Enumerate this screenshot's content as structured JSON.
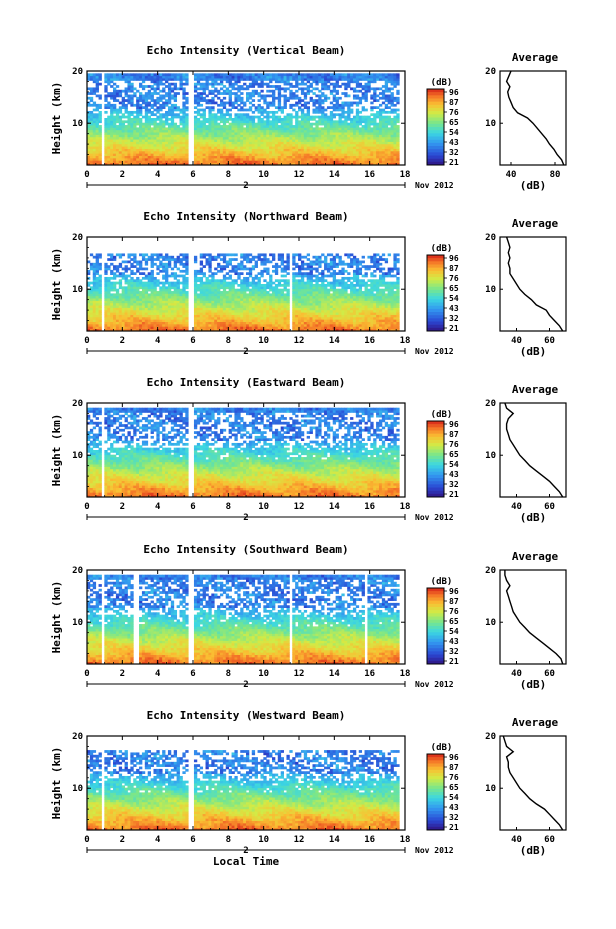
{
  "chart_data": [
    {
      "type": "heatmap",
      "title": "Echo Intensity (Vertical Beam)",
      "ylabel": "Height (km)",
      "x_ticks": [
        "0",
        "2",
        "4",
        "6",
        "8",
        "10",
        "12",
        "14",
        "16",
        "18"
      ],
      "xlim": [
        0,
        18
      ],
      "y_ticks": [
        "20",
        "10"
      ],
      "ylim": [
        2,
        20
      ],
      "date_marker": "2",
      "date_label": "Nov 2012",
      "colorbar": {
        "label": "(dB)",
        "ticks": [
          "96",
          "87",
          "76",
          "65",
          "54",
          "43",
          "32",
          "21"
        ]
      },
      "data_gaps": [
        [
          0.8,
          1.0
        ],
        [
          5.8,
          6.0
        ]
      ],
      "detection_top_km": 19.5,
      "average_profile": {
        "title": "Average",
        "xlabel": "(dB)",
        "x_ticks": [
          "40",
          "80"
        ],
        "xlim": [
          30,
          90
        ],
        "y_ticks": [
          "20",
          "10"
        ],
        "height_km": [
          2,
          3,
          4,
          5,
          6,
          7,
          8,
          9,
          10,
          11,
          12,
          13,
          14,
          15,
          16,
          17,
          18,
          19,
          20
        ],
        "value_db": [
          88,
          86,
          82,
          79,
          75,
          72,
          68,
          64,
          60,
          55,
          46,
          42,
          40,
          38,
          37,
          39,
          36,
          38,
          40
        ]
      }
    },
    {
      "type": "heatmap",
      "title": "Echo Intensity (Northward Beam)",
      "ylabel": "Height (km)",
      "x_ticks": [
        "0",
        "2",
        "4",
        "6",
        "8",
        "10",
        "12",
        "14",
        "16",
        "18"
      ],
      "xlim": [
        0,
        18
      ],
      "y_ticks": [
        "20",
        "10"
      ],
      "ylim": [
        2,
        20
      ],
      "date_marker": "2",
      "date_label": "Nov 2012",
      "colorbar": {
        "label": "(dB)",
        "ticks": [
          "96",
          "87",
          "76",
          "65",
          "54",
          "43",
          "32",
          "21"
        ]
      },
      "data_gaps": [
        [
          0.8,
          1.0
        ],
        [
          5.8,
          6.0
        ],
        [
          11.4,
          11.7
        ]
      ],
      "detection_top_km": 17.0,
      "average_profile": {
        "title": "Average",
        "xlabel": "(dB)",
        "x_ticks": [
          "40",
          "60"
        ],
        "xlim": [
          30,
          70
        ],
        "y_ticks": [
          "20",
          "10"
        ],
        "height_km": [
          2,
          3,
          4,
          5,
          6,
          7,
          8,
          9,
          10,
          11,
          12,
          13,
          14,
          15,
          16,
          17,
          18,
          19,
          20
        ],
        "value_db": [
          68,
          66,
          63,
          60,
          58,
          52,
          49,
          45,
          42,
          40,
          38,
          36,
          36,
          35,
          36,
          35,
          36,
          35,
          34
        ]
      }
    },
    {
      "type": "heatmap",
      "title": "Echo Intensity (Eastward Beam)",
      "ylabel": "Height (km)",
      "x_ticks": [
        "0",
        "2",
        "4",
        "6",
        "8",
        "10",
        "12",
        "14",
        "16",
        "18"
      ],
      "xlim": [
        0,
        18
      ],
      "y_ticks": [
        "20",
        "10"
      ],
      "ylim": [
        2,
        20
      ],
      "date_marker": "2",
      "date_label": "Nov 2012",
      "colorbar": {
        "label": "(dB)",
        "ticks": [
          "96",
          "87",
          "76",
          "65",
          "54",
          "43",
          "32",
          "21"
        ]
      },
      "data_gaps": [
        [
          0.8,
          1.0
        ],
        [
          5.8,
          6.0
        ]
      ],
      "detection_top_km": 19.0,
      "average_profile": {
        "title": "Average",
        "xlabel": "(dB)",
        "x_ticks": [
          "40",
          "60"
        ],
        "xlim": [
          30,
          70
        ],
        "y_ticks": [
          "20",
          "10"
        ],
        "height_km": [
          2,
          3,
          4,
          5,
          6,
          7,
          8,
          9,
          10,
          11,
          12,
          13,
          14,
          15,
          16,
          17,
          18,
          19,
          20
        ],
        "value_db": [
          68,
          66,
          63,
          60,
          56,
          52,
          48,
          45,
          42,
          40,
          38,
          36,
          35,
          34,
          34,
          35,
          38,
          34,
          33
        ]
      }
    },
    {
      "type": "heatmap",
      "title": "Echo Intensity (Southward Beam)",
      "ylabel": "Height (km)",
      "x_ticks": [
        "0",
        "2",
        "4",
        "6",
        "8",
        "10",
        "12",
        "14",
        "16",
        "18"
      ],
      "xlim": [
        0,
        18
      ],
      "y_ticks": [
        "20",
        "10"
      ],
      "ylim": [
        2,
        20
      ],
      "date_marker": "2",
      "date_label": "Nov 2012",
      "colorbar": {
        "label": "(dB)",
        "ticks": [
          "96",
          "87",
          "76",
          "65",
          "54",
          "43",
          "32",
          "21"
        ]
      },
      "data_gaps": [
        [
          0.8,
          1.0
        ],
        [
          2.6,
          2.9
        ],
        [
          5.8,
          6.0
        ],
        [
          11.5,
          11.7
        ],
        [
          15.7,
          15.9
        ]
      ],
      "detection_top_km": 19.0,
      "average_profile": {
        "title": "Average",
        "xlabel": "(dB)",
        "x_ticks": [
          "40",
          "60"
        ],
        "xlim": [
          30,
          70
        ],
        "y_ticks": [
          "20",
          "10"
        ],
        "height_km": [
          2,
          3,
          4,
          5,
          6,
          7,
          8,
          9,
          10,
          11,
          12,
          13,
          14,
          15,
          16,
          17,
          18,
          19,
          20
        ],
        "value_db": [
          68,
          67,
          64,
          60,
          56,
          52,
          48,
          45,
          42,
          40,
          38,
          37,
          36,
          35,
          34,
          36,
          34,
          33,
          33
        ]
      }
    },
    {
      "type": "heatmap",
      "title": "Echo Intensity (Westward Beam)",
      "ylabel": "Height (km)",
      "x_ticks": [
        "0",
        "2",
        "4",
        "6",
        "8",
        "10",
        "12",
        "14",
        "16",
        "18"
      ],
      "xlim": [
        0,
        18
      ],
      "y_ticks": [
        "20",
        "10"
      ],
      "ylim": [
        2,
        20
      ],
      "date_marker": "2",
      "date_label": "Nov 2012",
      "xlabel": "Local Time",
      "colorbar": {
        "label": "(dB)",
        "ticks": [
          "96",
          "87",
          "76",
          "65",
          "54",
          "43",
          "32",
          "21"
        ]
      },
      "data_gaps": [
        [
          0.8,
          1.0
        ],
        [
          5.8,
          6.0
        ]
      ],
      "detection_top_km": 17.5,
      "average_profile": {
        "title": "Average",
        "xlabel": "(dB)",
        "x_ticks": [
          "40",
          "60"
        ],
        "xlim": [
          30,
          70
        ],
        "y_ticks": [
          "20",
          "10"
        ],
        "height_km": [
          2,
          3,
          4,
          5,
          6,
          7,
          8,
          9,
          10,
          11,
          12,
          13,
          14,
          15,
          16,
          17,
          18,
          19,
          20
        ],
        "value_db": [
          68,
          66,
          63,
          60,
          57,
          52,
          48,
          45,
          42,
          40,
          38,
          36,
          35,
          35,
          34,
          38,
          34,
          33,
          32
        ]
      }
    }
  ]
}
